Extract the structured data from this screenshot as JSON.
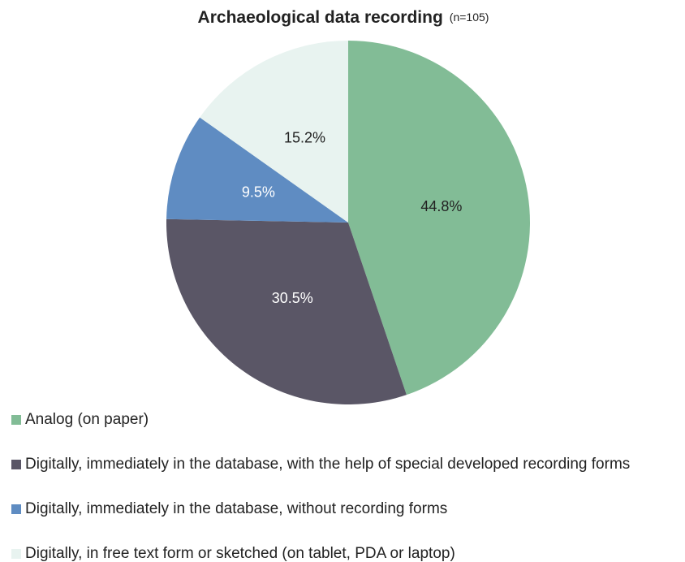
{
  "chart_data": {
    "type": "pie",
    "title": "Archaeological data recording",
    "subtitle": "(n=105)",
    "categories": [
      "Analog (on paper)",
      "Digitally, immediately in the database, with the help of special developed recording forms",
      "Digitally, immediately in the database, without recording forms",
      "Digitally, in free text form or sketched (on tablet, PDA or laptop)"
    ],
    "values": [
      44.8,
      30.5,
      9.5,
      15.2
    ],
    "value_labels": [
      "44.8%",
      "30.5%",
      "9.5%",
      "15.2%"
    ],
    "colors": [
      "#82bc96",
      "#5a5666",
      "#5f8cc2",
      "#e8f3f0"
    ],
    "legend": "bottom"
  }
}
